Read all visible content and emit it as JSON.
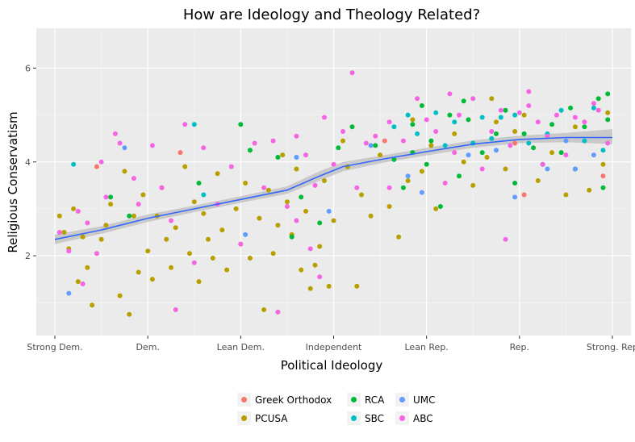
{
  "chart_data": {
    "type": "scatter",
    "title": "How are Ideology and Theology Related?",
    "xlabel": "Political Ideology",
    "ylabel": "Religious Conservatism",
    "x_categories": [
      "Strong Dem.",
      "Dem.",
      "Lean Dem.",
      "Independent",
      "Lean Rep.",
      "Rep.",
      "Strong. Rep"
    ],
    "xlim": [
      0.8,
      7.2
    ],
    "ylim": [
      0.3,
      6.85
    ],
    "y_ticks": [
      2,
      4,
      6
    ],
    "grid": true,
    "legend_position": "bottom",
    "series": [
      {
        "name": "Greek Orthodox",
        "color": "#F8766D",
        "points": [
          [
            1.45,
            3.9
          ],
          [
            2.35,
            4.2
          ],
          [
            5.95,
            4.4
          ],
          [
            6.05,
            3.3
          ],
          [
            6.9,
            3.7
          ],
          [
            4.55,
            4.45
          ]
        ]
      },
      {
        "name": "PCUSA",
        "color": "#B79F00",
        "points": [
          [
            1.1,
            2.5
          ],
          [
            1.2,
            3.0
          ],
          [
            1.3,
            2.4
          ],
          [
            1.05,
            2.85
          ],
          [
            1.15,
            2.15
          ],
          [
            1.35,
            1.75
          ],
          [
            1.25,
            1.45
          ],
          [
            1.4,
            0.95
          ],
          [
            1.5,
            2.35
          ],
          [
            1.6,
            3.1
          ],
          [
            1.55,
            2.65
          ],
          [
            1.7,
            1.15
          ],
          [
            1.75,
            3.8
          ],
          [
            1.85,
            2.85
          ],
          [
            1.9,
            1.65
          ],
          [
            1.95,
            3.3
          ],
          [
            2.0,
            2.1
          ],
          [
            2.05,
            1.5
          ],
          [
            2.1,
            2.85
          ],
          [
            2.15,
            3.45
          ],
          [
            2.2,
            2.35
          ],
          [
            2.25,
            1.75
          ],
          [
            2.3,
            2.6
          ],
          [
            2.4,
            3.9
          ],
          [
            2.45,
            2.05
          ],
          [
            2.5,
            3.15
          ],
          [
            2.55,
            1.45
          ],
          [
            2.6,
            2.9
          ],
          [
            2.65,
            2.35
          ],
          [
            2.75,
            3.75
          ],
          [
            2.8,
            2.55
          ],
          [
            2.85,
            1.7
          ],
          [
            2.95,
            3.0
          ],
          [
            3.0,
            2.25
          ],
          [
            3.05,
            3.55
          ],
          [
            3.1,
            1.95
          ],
          [
            3.2,
            2.8
          ],
          [
            3.25,
            0.85
          ],
          [
            3.3,
            3.4
          ],
          [
            3.35,
            2.05
          ],
          [
            3.4,
            2.65
          ],
          [
            3.45,
            4.15
          ],
          [
            3.5,
            3.15
          ],
          [
            3.55,
            2.45
          ],
          [
            3.6,
            3.85
          ],
          [
            3.65,
            1.7
          ],
          [
            3.7,
            2.95
          ],
          [
            3.75,
            1.3
          ],
          [
            3.85,
            2.2
          ],
          [
            3.9,
            3.6
          ],
          [
            3.95,
            1.35
          ],
          [
            4.0,
            2.75
          ],
          [
            4.1,
            4.45
          ],
          [
            4.15,
            3.9
          ],
          [
            4.3,
            3.3
          ],
          [
            4.4,
            2.85
          ],
          [
            4.5,
            4.15
          ],
          [
            4.6,
            3.05
          ],
          [
            4.7,
            2.4
          ],
          [
            4.8,
            3.6
          ],
          [
            4.85,
            4.9
          ],
          [
            4.95,
            3.8
          ],
          [
            5.05,
            4.35
          ],
          [
            5.1,
            3.0
          ],
          [
            5.3,
            4.6
          ],
          [
            5.4,
            4.0
          ],
          [
            5.5,
            3.5
          ],
          [
            5.65,
            4.1
          ],
          [
            5.7,
            5.35
          ],
          [
            5.75,
            4.85
          ],
          [
            5.85,
            3.85
          ],
          [
            5.95,
            4.65
          ],
          [
            6.05,
            5.0
          ],
          [
            6.2,
            3.6
          ],
          [
            6.35,
            4.2
          ],
          [
            6.5,
            3.3
          ],
          [
            6.6,
            4.75
          ],
          [
            6.75,
            3.4
          ],
          [
            6.9,
            3.95
          ],
          [
            6.95,
            5.05
          ],
          [
            1.8,
            0.75
          ],
          [
            2.7,
            1.95
          ],
          [
            3.8,
            1.8
          ],
          [
            4.25,
            1.35
          ]
        ]
      },
      {
        "name": "RCA",
        "color": "#00BA38",
        "points": [
          [
            1.6,
            3.25
          ],
          [
            1.8,
            2.85
          ],
          [
            2.55,
            3.55
          ],
          [
            3.0,
            4.8
          ],
          [
            3.1,
            4.25
          ],
          [
            3.4,
            4.1
          ],
          [
            3.55,
            2.4
          ],
          [
            3.65,
            3.25
          ],
          [
            3.85,
            2.7
          ],
          [
            4.05,
            4.3
          ],
          [
            4.2,
            4.75
          ],
          [
            4.45,
            4.35
          ],
          [
            4.65,
            4.05
          ],
          [
            4.75,
            3.45
          ],
          [
            4.85,
            4.8
          ],
          [
            4.95,
            5.2
          ],
          [
            5.0,
            3.95
          ],
          [
            5.05,
            4.45
          ],
          [
            5.15,
            3.05
          ],
          [
            5.25,
            5.0
          ],
          [
            5.35,
            3.7
          ],
          [
            5.45,
            4.9
          ],
          [
            5.6,
            4.2
          ],
          [
            5.75,
            4.6
          ],
          [
            5.85,
            5.1
          ],
          [
            5.95,
            3.55
          ],
          [
            6.05,
            4.6
          ],
          [
            6.15,
            4.3
          ],
          [
            6.25,
            3.95
          ],
          [
            6.35,
            4.8
          ],
          [
            6.45,
            4.2
          ],
          [
            6.55,
            5.15
          ],
          [
            6.7,
            4.75
          ],
          [
            6.85,
            5.35
          ],
          [
            6.95,
            5.45
          ],
          [
            6.95,
            4.9
          ],
          [
            6.9,
            3.45
          ],
          [
            4.85,
            4.2
          ],
          [
            5.4,
            5.3
          ],
          [
            6.6,
            3.85
          ]
        ]
      },
      {
        "name": "SBC",
        "color": "#00BFC4",
        "points": [
          [
            1.2,
            3.95
          ],
          [
            2.5,
            4.8
          ],
          [
            2.6,
            3.3
          ],
          [
            4.8,
            5.0
          ],
          [
            4.9,
            4.6
          ],
          [
            5.2,
            4.35
          ],
          [
            5.3,
            4.85
          ],
          [
            5.5,
            4.4
          ],
          [
            5.6,
            4.95
          ],
          [
            5.7,
            4.5
          ],
          [
            5.8,
            4.95
          ],
          [
            5.95,
            5.0
          ],
          [
            6.1,
            4.4
          ],
          [
            6.3,
            4.6
          ],
          [
            6.45,
            5.1
          ],
          [
            6.7,
            4.45
          ],
          [
            6.9,
            4.25
          ],
          [
            6.8,
            5.15
          ],
          [
            4.65,
            4.75
          ],
          [
            5.1,
            5.05
          ]
        ]
      },
      {
        "name": "UMC",
        "color": "#619CFF",
        "points": [
          [
            1.15,
            1.2
          ],
          [
            1.75,
            4.3
          ],
          [
            3.05,
            2.45
          ],
          [
            3.6,
            4.1
          ],
          [
            3.95,
            2.95
          ],
          [
            4.4,
            4.35
          ],
          [
            4.8,
            3.7
          ],
          [
            4.95,
            3.35
          ],
          [
            5.45,
            4.15
          ],
          [
            5.95,
            3.25
          ],
          [
            6.3,
            3.85
          ],
          [
            6.6,
            3.85
          ],
          [
            6.8,
            4.15
          ],
          [
            6.5,
            4.45
          ],
          [
            5.75,
            4.25
          ]
        ]
      },
      {
        "name": "ABC",
        "color": "#F564E3",
        "points": [
          [
            1.05,
            2.5
          ],
          [
            1.15,
            2.1
          ],
          [
            1.25,
            2.95
          ],
          [
            1.3,
            1.4
          ],
          [
            1.35,
            2.7
          ],
          [
            1.5,
            4.0
          ],
          [
            1.55,
            3.25
          ],
          [
            1.65,
            4.6
          ],
          [
            1.7,
            4.4
          ],
          [
            1.85,
            3.65
          ],
          [
            1.9,
            3.1
          ],
          [
            2.05,
            4.35
          ],
          [
            2.15,
            3.45
          ],
          [
            2.25,
            2.75
          ],
          [
            2.3,
            0.85
          ],
          [
            2.4,
            4.8
          ],
          [
            2.5,
            1.85
          ],
          [
            2.6,
            4.3
          ],
          [
            2.75,
            3.1
          ],
          [
            2.9,
            3.9
          ],
          [
            3.0,
            2.25
          ],
          [
            3.15,
            4.4
          ],
          [
            3.25,
            3.45
          ],
          [
            3.35,
            4.45
          ],
          [
            3.5,
            3.05
          ],
          [
            3.6,
            4.55
          ],
          [
            3.7,
            4.15
          ],
          [
            3.75,
            2.15
          ],
          [
            3.8,
            3.5
          ],
          [
            3.85,
            1.55
          ],
          [
            3.9,
            4.95
          ],
          [
            4.0,
            3.95
          ],
          [
            4.1,
            4.65
          ],
          [
            4.2,
            5.9
          ],
          [
            4.25,
            3.45
          ],
          [
            4.35,
            4.4
          ],
          [
            4.45,
            4.55
          ],
          [
            4.6,
            4.85
          ],
          [
            4.75,
            4.45
          ],
          [
            4.9,
            5.35
          ],
          [
            5.0,
            4.9
          ],
          [
            5.1,
            4.65
          ],
          [
            5.2,
            3.55
          ],
          [
            5.3,
            4.2
          ],
          [
            5.35,
            5.0
          ],
          [
            5.5,
            5.35
          ],
          [
            5.6,
            3.85
          ],
          [
            5.7,
            4.65
          ],
          [
            5.8,
            5.1
          ],
          [
            5.85,
            2.35
          ],
          [
            5.9,
            4.35
          ],
          [
            6.0,
            5.05
          ],
          [
            6.1,
            5.2
          ],
          [
            6.2,
            4.85
          ],
          [
            6.3,
            4.55
          ],
          [
            6.4,
            5.0
          ],
          [
            6.5,
            4.15
          ],
          [
            6.6,
            4.95
          ],
          [
            6.7,
            4.85
          ],
          [
            6.8,
            5.25
          ],
          [
            6.85,
            5.1
          ],
          [
            6.95,
            4.4
          ],
          [
            3.4,
            0.8
          ],
          [
            3.6,
            2.75
          ],
          [
            1.45,
            2.05
          ],
          [
            4.6,
            3.45
          ],
          [
            5.25,
            5.45
          ],
          [
            6.1,
            5.5
          ],
          [
            6.25,
            3.95
          ]
        ]
      }
    ],
    "trend": {
      "name": "loess",
      "color": "#3366FF",
      "points": [
        [
          1.0,
          2.35
        ],
        [
          1.5,
          2.55
        ],
        [
          2.0,
          2.8
        ],
        [
          2.5,
          3.0
        ],
        [
          3.0,
          3.2
        ],
        [
          3.5,
          3.4
        ],
        [
          3.85,
          3.7
        ],
        [
          4.1,
          3.9
        ],
        [
          4.5,
          4.05
        ],
        [
          5.0,
          4.22
        ],
        [
          5.5,
          4.38
        ],
        [
          6.0,
          4.48
        ],
        [
          6.5,
          4.52
        ],
        [
          7.0,
          4.52
        ]
      ],
      "ci": [
        [
          1.0,
          2.25,
          2.45
        ],
        [
          1.5,
          2.47,
          2.63
        ],
        [
          2.0,
          2.72,
          2.88
        ],
        [
          2.5,
          2.93,
          3.07
        ],
        [
          3.0,
          3.13,
          3.27
        ],
        [
          3.5,
          3.32,
          3.48
        ],
        [
          3.85,
          3.6,
          3.8
        ],
        [
          4.1,
          3.8,
          4.0
        ],
        [
          4.5,
          3.97,
          4.13
        ],
        [
          5.0,
          4.14,
          4.3
        ],
        [
          5.5,
          4.3,
          4.46
        ],
        [
          6.0,
          4.4,
          4.56
        ],
        [
          6.5,
          4.42,
          4.62
        ],
        [
          7.0,
          4.38,
          4.7
        ]
      ]
    }
  }
}
